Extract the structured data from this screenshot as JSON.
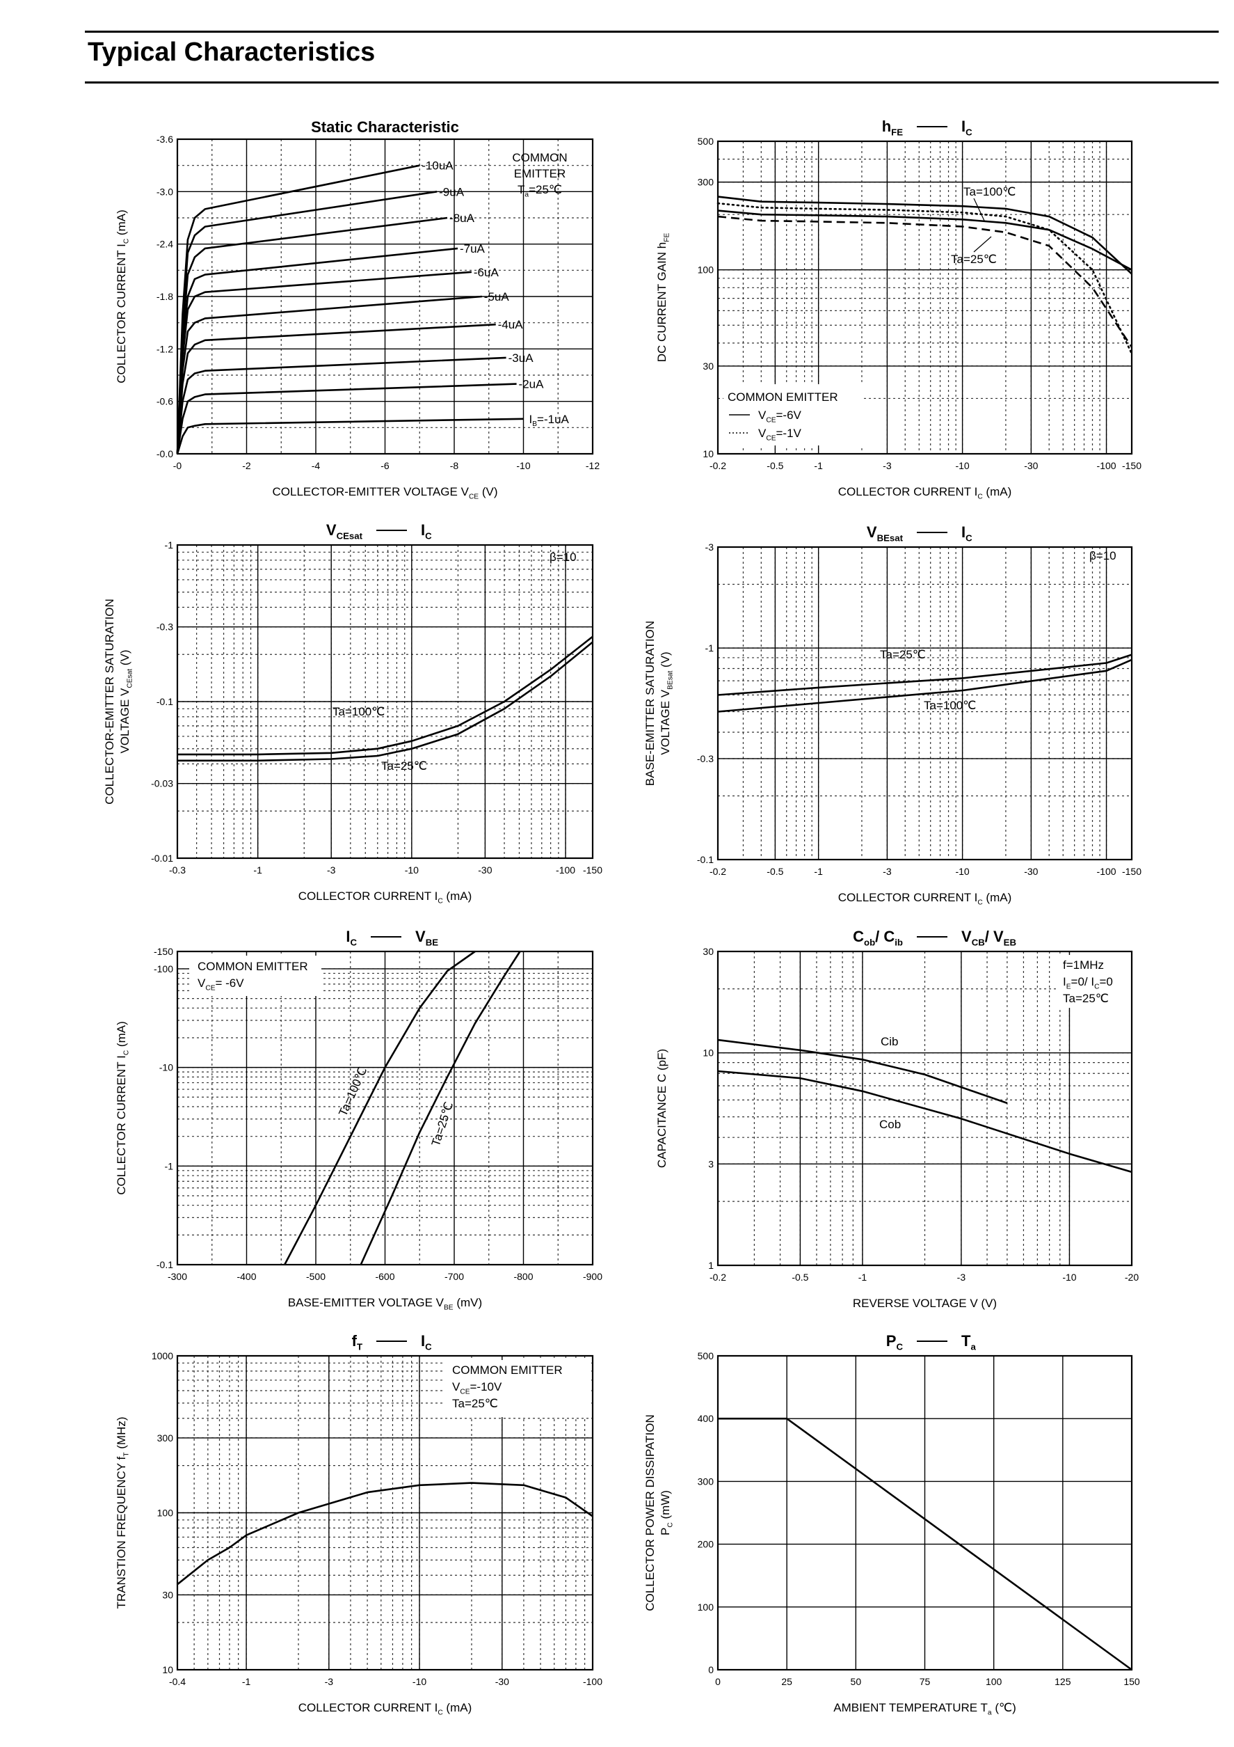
{
  "page": {
    "title": "Typical Characteristics"
  },
  "chart_data": [
    {
      "id": "static",
      "type": "line",
      "title": "Static Characteristic",
      "xlabel": "COLLECTOR-EMITTER VOLTAGE   V",
      "xlabel_sub": "CE",
      "xlabel_unit": "(V)",
      "ylabel": "COLLECTOR CURRENT   I",
      "ylabel_sub": "C",
      "ylabel_unit": "(mA)",
      "x_scale": "linear",
      "y_scale": "linear",
      "xlim": [
        0,
        12
      ],
      "ylim": [
        0,
        3.6
      ],
      "xticks": [
        0,
        2,
        4,
        6,
        8,
        10,
        12
      ],
      "xtick_labels": [
        "-0",
        "-2",
        "-4",
        "-6",
        "-8",
        "-10",
        "-12"
      ],
      "yticks": [
        0,
        0.6,
        1.2,
        1.8,
        2.4,
        3.0,
        3.6
      ],
      "ytick_labels": [
        "-0.0",
        "-0.6",
        "-1.2",
        "-1.8",
        "-2.4",
        "-3.0",
        "-3.6"
      ],
      "annotation": [
        "COMMON",
        "EMITTER",
        "T",
        "a",
        "=25℃"
      ],
      "series": [
        {
          "label": "-10uA",
          "x": [
            0,
            0.15,
            0.3,
            0.5,
            0.8,
            7.0
          ],
          "y": [
            0,
            1.6,
            2.45,
            2.7,
            2.8,
            3.3
          ]
        },
        {
          "label": "-9uA",
          "x": [
            0,
            0.15,
            0.3,
            0.5,
            0.8,
            7.5
          ],
          "y": [
            0,
            1.5,
            2.3,
            2.5,
            2.6,
            3.0
          ]
        },
        {
          "label": "-8uA",
          "x": [
            0,
            0.15,
            0.3,
            0.5,
            0.8,
            7.8
          ],
          "y": [
            0,
            1.35,
            2.05,
            2.25,
            2.35,
            2.7
          ]
        },
        {
          "label": "-7uA",
          "x": [
            0,
            0.15,
            0.3,
            0.5,
            0.8,
            8.1
          ],
          "y": [
            0,
            1.2,
            1.8,
            2.0,
            2.05,
            2.35
          ]
        },
        {
          "label": "-6uA",
          "x": [
            0,
            0.15,
            0.3,
            0.5,
            0.8,
            8.5
          ],
          "y": [
            0,
            1.1,
            1.65,
            1.8,
            1.85,
            2.08
          ]
        },
        {
          "label": "-5uA",
          "x": [
            0,
            0.15,
            0.3,
            0.5,
            0.8,
            8.8
          ],
          "y": [
            0,
            0.95,
            1.4,
            1.5,
            1.55,
            1.8
          ]
        },
        {
          "label": "-4uA",
          "x": [
            0,
            0.15,
            0.3,
            0.5,
            0.8,
            9.2
          ],
          "y": [
            0,
            0.8,
            1.15,
            1.25,
            1.3,
            1.48
          ]
        },
        {
          "label": "-3uA",
          "x": [
            0,
            0.15,
            0.3,
            0.5,
            0.8,
            9.5
          ],
          "y": [
            0,
            0.6,
            0.85,
            0.92,
            0.95,
            1.1
          ]
        },
        {
          "label": "-2uA",
          "x": [
            0,
            0.15,
            0.3,
            0.5,
            0.8,
            9.8
          ],
          "y": [
            0,
            0.4,
            0.6,
            0.65,
            0.68,
            0.8
          ]
        },
        {
          "label": "I_B=-1uA",
          "x": [
            0,
            0.15,
            0.3,
            0.5,
            0.8,
            10.0
          ],
          "y": [
            0,
            0.2,
            0.3,
            0.32,
            0.34,
            0.4
          ]
        }
      ]
    },
    {
      "id": "hfe",
      "type": "line",
      "title": "h",
      "title_sub": "FE",
      "title_right": "I",
      "title_right_sub": "C",
      "xlabel": "COLLECTOR CURRENT   I",
      "xlabel_sub": "C",
      "xlabel_unit": "(mA)",
      "ylabel": "DC CURRENT GAIN   h",
      "ylabel_sub": "FE",
      "ylabel_unit": "",
      "x_scale": "log",
      "y_scale": "log",
      "xlim": [
        0.2,
        150
      ],
      "ylim": [
        10,
        500
      ],
      "xticks": [
        0.2,
        0.5,
        1,
        3,
        10,
        30,
        100,
        150
      ],
      "xtick_labels": [
        "-0.2",
        "-0.5",
        "-1",
        "-3",
        "-10",
        "-30",
        "-100",
        "-150"
      ],
      "yticks": [
        10,
        30,
        100,
        300,
        500
      ],
      "ytick_labels": [
        "10",
        "30",
        "100",
        "300",
        "500"
      ],
      "annotation": [
        "COMMON EMITTER",
        "V",
        "CE",
        "=-6V",
        "V",
        "CE",
        "=-1V"
      ],
      "series": [
        {
          "label": "Ta=100℃",
          "style": "solid",
          "x": [
            0.2,
            0.4,
            1,
            3,
            10,
            20,
            40,
            80,
            150
          ],
          "y": [
            250,
            235,
            232,
            228,
            222,
            215,
            195,
            150,
            95
          ]
        },
        {
          "label": "Ta=100℃",
          "style": "dotted",
          "x": [
            0.2,
            0.4,
            1,
            3,
            10,
            20,
            40,
            80,
            150
          ],
          "y": [
            230,
            218,
            215,
            212,
            205,
            195,
            165,
            100,
            35
          ]
        },
        {
          "label": "Ta=25℃",
          "style": "solid",
          "x": [
            0.2,
            0.4,
            1,
            3,
            10,
            20,
            40,
            80,
            150
          ],
          "y": [
            210,
            200,
            198,
            195,
            188,
            180,
            165,
            130,
            100
          ]
        },
        {
          "label": "Ta=25℃",
          "style": "dashed",
          "x": [
            0.2,
            0.4,
            1,
            3,
            10,
            20,
            40,
            80,
            150
          ],
          "y": [
            195,
            185,
            183,
            180,
            172,
            160,
            135,
            80,
            38
          ]
        }
      ]
    },
    {
      "id": "vcesat",
      "type": "line",
      "title": "V",
      "title_sub": "CEsat",
      "title_right": "I",
      "title_right_sub": "C",
      "xlabel": "COLLECTOR CURRENT   I",
      "xlabel_sub": "C",
      "xlabel_unit": "(mA)",
      "ylabel": "COLLECTOR-EMITTER SATURATION",
      "ylabel2": "VOLTAGE   V",
      "ylabel_sub": "CEsat",
      "ylabel_unit": "(V)",
      "x_scale": "log",
      "y_scale": "log",
      "xlim": [
        0.3,
        150
      ],
      "ylim": [
        0.01,
        1
      ],
      "xticks": [
        0.3,
        1,
        3,
        10,
        30,
        100,
        150
      ],
      "xtick_labels": [
        "-0.3",
        "-1",
        "-3",
        "-10",
        "-30",
        "-100",
        "-150"
      ],
      "yticks": [
        0.01,
        0.03,
        0.1,
        0.3,
        1
      ],
      "ytick_labels": [
        "-0.01",
        "-0.03",
        "-0.1",
        "-0.3",
        "-1"
      ],
      "annotation": [
        "β=10"
      ],
      "series": [
        {
          "label": "Ta=100℃",
          "x": [
            0.3,
            1,
            3,
            6,
            10,
            20,
            40,
            80,
            150
          ],
          "y": [
            0.046,
            0.046,
            0.047,
            0.05,
            0.056,
            0.07,
            0.1,
            0.16,
            0.26
          ]
        },
        {
          "label": "Ta=25℃",
          "x": [
            0.3,
            1,
            3,
            6,
            10,
            20,
            40,
            80,
            150
          ],
          "y": [
            0.042,
            0.042,
            0.043,
            0.045,
            0.05,
            0.062,
            0.09,
            0.145,
            0.24
          ]
        }
      ]
    },
    {
      "id": "vbesat",
      "type": "line",
      "title": "V",
      "title_sub": "BEsat",
      "title_right": "I",
      "title_right_sub": "C",
      "xlabel": "COLLECTOR CURRENT   I",
      "xlabel_sub": "C",
      "xlabel_unit": "(mA)",
      "ylabel": "BASE-EMITTER SATURATION",
      "ylabel2": "VOLTAGE   V",
      "ylabel_sub": "BEsat",
      "ylabel_unit": "(V)",
      "x_scale": "log",
      "y_scale": "log",
      "xlim": [
        0.2,
        150
      ],
      "ylim": [
        0.1,
        3
      ],
      "xticks": [
        0.2,
        0.5,
        1,
        3,
        10,
        30,
        100,
        150
      ],
      "xtick_labels": [
        "-0.2",
        "-0.5",
        "-1",
        "-3",
        "-10",
        "-30",
        "-100",
        "-150"
      ],
      "yticks": [
        0.1,
        0.3,
        1,
        3
      ],
      "ytick_labels": [
        "-0.1",
        "-0.3",
        "-1",
        "-3"
      ],
      "annotation": [
        "β=10"
      ],
      "series": [
        {
          "label": "Ta=25℃",
          "x": [
            0.2,
            1,
            10,
            100,
            150
          ],
          "y": [
            0.6,
            0.65,
            0.72,
            0.85,
            0.93
          ]
        },
        {
          "label": "Ta=100℃",
          "x": [
            0.2,
            1,
            10,
            100,
            150
          ],
          "y": [
            0.5,
            0.55,
            0.63,
            0.78,
            0.88
          ]
        }
      ]
    },
    {
      "id": "icvbe",
      "type": "line",
      "title": "I",
      "title_sub": "C",
      "title_right": "V",
      "title_right_sub": "BE",
      "xlabel": "BASE-EMITTER VOLTAGE   V",
      "xlabel_sub": "BE",
      "xlabel_unit": "(mV)",
      "ylabel": "COLLECTOR CURRENT   I",
      "ylabel_sub": "C",
      "ylabel_unit": "(mA)",
      "x_scale": "linear",
      "y_scale": "log",
      "xlim": [
        300,
        900
      ],
      "ylim": [
        0.1,
        150
      ],
      "xticks": [
        300,
        400,
        500,
        600,
        700,
        800,
        900
      ],
      "xtick_labels": [
        "-300",
        "-400",
        "-500",
        "-600",
        "-700",
        "-800",
        "-900"
      ],
      "yticks": [
        0.1,
        1,
        10,
        100,
        150
      ],
      "ytick_labels": [
        "-0.1",
        "-1",
        "-10",
        "-100",
        "-150"
      ],
      "annotation": [
        "COMMON EMITTER",
        "V",
        "CE",
        "= -6V"
      ],
      "series": [
        {
          "label": "Ta=100℃",
          "x": [
            455,
            500,
            550,
            600,
            650,
            690,
            730
          ],
          "y": [
            0.1,
            0.4,
            2.0,
            10,
            40,
            95,
            150
          ]
        },
        {
          "label": "Ta=25℃",
          "x": [
            565,
            610,
            650,
            690,
            730,
            770,
            795
          ],
          "y": [
            0.1,
            0.5,
            2.2,
            8,
            28,
            80,
            150
          ]
        }
      ]
    },
    {
      "id": "cap",
      "type": "line",
      "title": "C",
      "title_sub": "ob",
      "title_mid": "/ C",
      "title_mid_sub": "ib",
      "title_right": "V",
      "title_right_sub": "CB",
      "title_right2": "/ V",
      "title_right2_sub": "EB",
      "xlabel": "REVERSE VOLTAGE   V",
      "xlabel_sub": "",
      "xlabel_unit": "(V)",
      "ylabel": "CAPACITANCE   C",
      "ylabel_sub": "",
      "ylabel_unit": "(pF)",
      "x_scale": "log",
      "y_scale": "log",
      "xlim": [
        0.2,
        20
      ],
      "ylim": [
        1,
        30
      ],
      "xticks": [
        0.2,
        0.5,
        1,
        3,
        10,
        20
      ],
      "xtick_labels": [
        "-0.2",
        "-0.5",
        "-1",
        "-3",
        "-10",
        "-20"
      ],
      "yticks": [
        1,
        3,
        10,
        30
      ],
      "ytick_labels": [
        "1",
        "3",
        "10",
        "30"
      ],
      "annotation": [
        "f=1MHz",
        "I",
        "E",
        "=0/ I",
        "C",
        "=0",
        "Ta=25℃"
      ],
      "series": [
        {
          "label": "Cib",
          "x": [
            0.2,
            0.5,
            1,
            2,
            5
          ],
          "y": [
            11.5,
            10.3,
            9.3,
            7.9,
            5.8
          ]
        },
        {
          "label": "Cob",
          "x": [
            0.2,
            0.5,
            1,
            3,
            10,
            20
          ],
          "y": [
            8.2,
            7.6,
            6.6,
            4.9,
            3.35,
            2.75
          ]
        }
      ]
    },
    {
      "id": "ft",
      "type": "line",
      "title": "f",
      "title_sub": "T",
      "title_right": "I",
      "title_right_sub": "C",
      "xlabel": "COLLECTOR CURRENT   I",
      "xlabel_sub": "C",
      "xlabel_unit": "(mA)",
      "ylabel": "TRANSTION FREQUENCY   f",
      "ylabel_sub": "T",
      "ylabel_unit": "(MHz)",
      "x_scale": "log",
      "y_scale": "log",
      "xlim": [
        0.4,
        100
      ],
      "ylim": [
        10,
        1000
      ],
      "xticks": [
        0.4,
        1,
        3,
        10,
        30,
        100
      ],
      "xtick_labels": [
        "-0.4",
        "-1",
        "-3",
        "-10",
        "-30",
        "-100"
      ],
      "yticks": [
        10,
        30,
        100,
        300,
        1000
      ],
      "ytick_labels": [
        "10",
        "30",
        "100",
        "300",
        "1000"
      ],
      "annotation": [
        "COMMON EMITTER",
        "V",
        "CE",
        "=-10V",
        "Ta=25℃"
      ],
      "series": [
        {
          "label": "",
          "x": [
            0.4,
            0.6,
            0.8,
            1,
            2,
            5,
            10,
            20,
            40,
            70,
            100
          ],
          "y": [
            35,
            50,
            60,
            72,
            100,
            135,
            150,
            155,
            150,
            125,
            95
          ]
        }
      ]
    },
    {
      "id": "pc",
      "type": "line",
      "title": "P",
      "title_sub": "C",
      "title_right": "T",
      "title_right_sub": "a",
      "xlabel": "AMBIENT TEMPERATURE   T",
      "xlabel_sub": "a",
      "xlabel_unit": "(℃)",
      "ylabel": "COLLECTOR POWER DISSIPATION",
      "ylabel2": "P",
      "ylabel_sub": "C",
      "ylabel_unit": "(mW)",
      "x_scale": "linear",
      "y_scale": "linear",
      "xlim": [
        0,
        150
      ],
      "ylim": [
        0,
        500
      ],
      "xticks": [
        0,
        25,
        50,
        75,
        100,
        125,
        150
      ],
      "xtick_labels": [
        "0",
        "25",
        "50",
        "75",
        "100",
        "125",
        "150"
      ],
      "yticks": [
        0,
        100,
        200,
        300,
        400,
        500
      ],
      "ytick_labels": [
        "0",
        "100",
        "200",
        "300",
        "400",
        "500"
      ],
      "annotation": [],
      "series": [
        {
          "label": "",
          "x": [
            0,
            25,
            150
          ],
          "y": [
            400,
            400,
            0
          ]
        }
      ]
    }
  ]
}
